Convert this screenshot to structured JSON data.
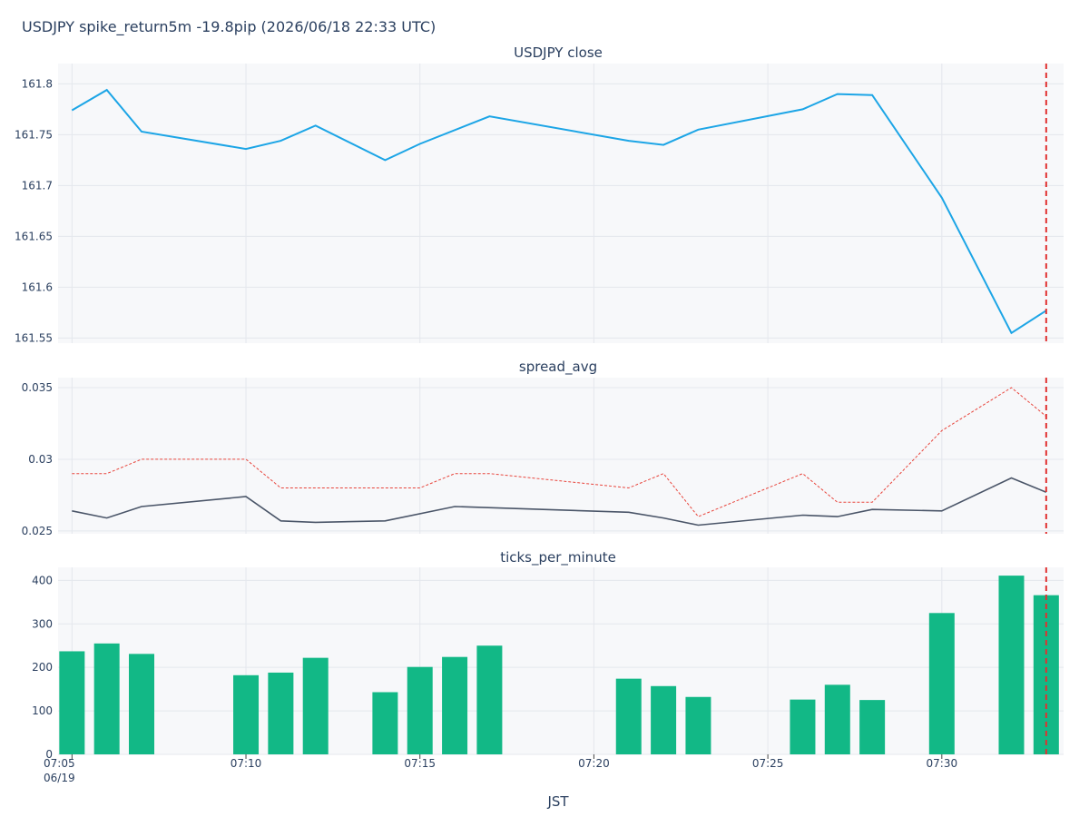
{
  "title": "USDJPY spike_return5m -19.8pip (2026/06/18 22:33 UTC)",
  "xlabel": "JST",
  "x_ticks": [
    "07:05",
    "07:10",
    "07:15",
    "07:20",
    "07:25",
    "07:30"
  ],
  "x_date_label": "06/19",
  "event_time": "07:33",
  "colors": {
    "close": "#1ca5e6",
    "spread": "#4a5568",
    "spread_max": "#e8453c",
    "ticks": "#12b886",
    "event": "#e03131"
  },
  "chart_data": [
    {
      "type": "line",
      "title": "USDJPY close",
      "ylim": [
        161.545,
        161.82
      ],
      "yticks": [
        "161.8",
        "161.75",
        "161.7",
        "161.65",
        "161.6",
        "161.55"
      ],
      "series": [
        {
          "x": [
            "07:05",
            "07:06",
            "07:07",
            "07:10",
            "07:11",
            "07:12",
            "07:14",
            "07:15",
            "07:17",
            "07:21",
            "07:22",
            "07:23",
            "07:26",
            "07:27",
            "07:28",
            "07:30",
            "07:32",
            "07:33"
          ],
          "values": [
            161.774,
            161.794,
            161.753,
            161.736,
            161.744,
            161.759,
            161.725,
            161.741,
            161.768,
            161.744,
            161.74,
            161.755,
            161.775,
            161.79,
            161.789,
            161.688,
            161.555,
            161.577
          ]
        }
      ]
    },
    {
      "type": "line",
      "title": "spread_avg",
      "ylim": [
        0.0248,
        0.0357
      ],
      "yticks": [
        "0.035",
        "0.03",
        "0.025"
      ],
      "series": [
        {
          "style": "solid",
          "x": [
            "07:05",
            "07:06",
            "07:07",
            "07:10",
            "07:11",
            "07:12",
            "07:14",
            "07:16",
            "07:21",
            "07:22",
            "07:23",
            "07:26",
            "07:27",
            "07:28",
            "07:30",
            "07:32",
            "07:33"
          ],
          "values": [
            0.0264,
            0.0259,
            0.0267,
            0.0274,
            0.0257,
            0.0256,
            0.0257,
            0.0267,
            0.0263,
            0.0259,
            0.0254,
            0.0261,
            0.026,
            0.0265,
            0.0264,
            0.0287,
            0.0277
          ]
        },
        {
          "style": "dotted",
          "x": [
            "07:05",
            "07:06",
            "07:07",
            "07:10",
            "07:11",
            "07:12",
            "07:14",
            "07:15",
            "07:16",
            "07:17",
            "07:21",
            "07:22",
            "07:23",
            "07:26",
            "07:27",
            "07:28",
            "07:30",
            "07:32",
            "07:33"
          ],
          "values": [
            0.029,
            0.029,
            0.03,
            0.03,
            0.028,
            0.028,
            0.028,
            0.028,
            0.029,
            0.029,
            0.028,
            0.029,
            0.026,
            0.029,
            0.027,
            0.027,
            0.032,
            0.035,
            0.033
          ]
        }
      ]
    },
    {
      "type": "bar",
      "title": "ticks_per_minute",
      "ylim": [
        0,
        430
      ],
      "yticks": [
        "400",
        "300",
        "200",
        "100",
        "0"
      ],
      "x": [
        "07:05",
        "07:06",
        "07:07",
        "07:10",
        "07:11",
        "07:12",
        "07:14",
        "07:15",
        "07:16",
        "07:17",
        "07:21",
        "07:22",
        "07:23",
        "07:26",
        "07:27",
        "07:28",
        "07:30",
        "07:32",
        "07:33"
      ],
      "values": [
        237,
        255,
        231,
        182,
        188,
        222,
        143,
        201,
        224,
        250,
        174,
        157,
        132,
        126,
        160,
        125,
        325,
        411,
        366
      ]
    }
  ]
}
